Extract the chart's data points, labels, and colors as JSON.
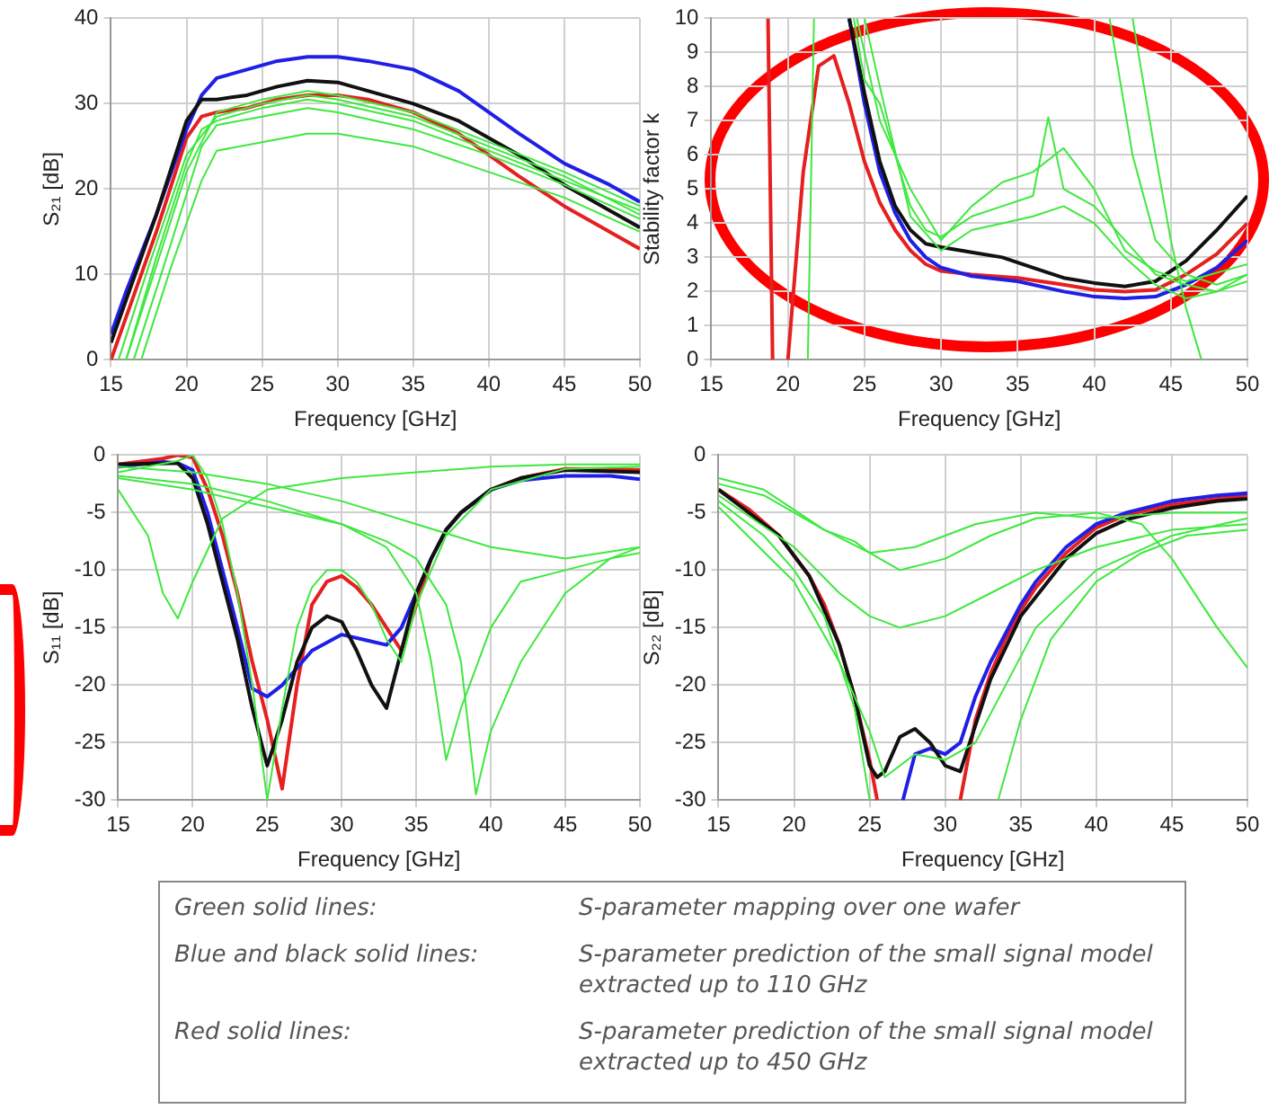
{
  "chart_data": [
    {
      "type": "line",
      "xlabel": "Frequency [GHz]",
      "ylabel": "S₂₁ [dB]",
      "xlim": [
        15,
        50
      ],
      "xticks": [
        15,
        20,
        25,
        30,
        35,
        40,
        45,
        50
      ],
      "ylim": [
        0,
        40
      ],
      "yticks": [
        0,
        10,
        20,
        30,
        40
      ],
      "grid": true,
      "marker": "none",
      "series": [
        {
          "color": "#3ee83e",
          "x": [
            16,
            18,
            20,
            21,
            22,
            25,
            28,
            30,
            35,
            40,
            45,
            50
          ],
          "values": [
            0,
            12,
            23,
            27,
            28,
            29.5,
            30.5,
            30,
            28,
            24.5,
            21,
            17.5
          ]
        },
        {
          "color": "#3ee83e",
          "x": [
            16,
            18,
            20,
            22,
            25,
            28,
            30,
            35,
            40,
            45,
            50
          ],
          "values": [
            0,
            11,
            22,
            29,
            30.5,
            31.5,
            31,
            29,
            25.5,
            22,
            18
          ]
        },
        {
          "color": "#3ee83e",
          "x": [
            16.5,
            18.5,
            21,
            22,
            25,
            28,
            30,
            35,
            40,
            45,
            50
          ],
          "values": [
            0,
            11,
            25,
            27.5,
            28.5,
            29.5,
            29,
            27,
            24,
            20.5,
            16.5
          ]
        },
        {
          "color": "#3ee83e",
          "x": [
            17,
            19,
            21,
            22,
            25,
            28,
            30,
            35,
            40,
            45,
            50
          ],
          "values": [
            0,
            11,
            21,
            24.5,
            25.5,
            26.5,
            26.5,
            25,
            22,
            19,
            15
          ]
        },
        {
          "color": "#3ee83e",
          "x": [
            15.5,
            17.5,
            20,
            22,
            25,
            28,
            30,
            35,
            40,
            45,
            50
          ],
          "values": [
            0,
            11,
            24,
            28.5,
            30,
            31,
            30.5,
            28.5,
            25,
            21.5,
            17
          ]
        },
        {
          "color": "#111111",
          "x": [
            15,
            16,
            18,
            20,
            21,
            22,
            24,
            26,
            28,
            30,
            32,
            35,
            38,
            40,
            42,
            45,
            48,
            50
          ],
          "values": [
            2,
            7,
            17,
            28,
            30.5,
            30.5,
            31,
            32,
            32.7,
            32.5,
            31.5,
            30,
            28,
            26,
            24,
            20.5,
            17.5,
            15.5
          ]
        },
        {
          "color": "#1f1fe6",
          "x": [
            15,
            16,
            18,
            20,
            21,
            22,
            24,
            26,
            28,
            30,
            32,
            35,
            38,
            40,
            42,
            45,
            48,
            50
          ],
          "values": [
            3,
            8,
            17,
            27,
            31,
            33,
            34,
            35,
            35.5,
            35.5,
            35,
            34,
            31.5,
            29,
            26.5,
            23,
            20.5,
            18.5
          ]
        },
        {
          "color": "#e61f1f",
          "x": [
            15,
            16,
            18,
            20,
            21,
            22,
            24,
            26,
            28,
            30,
            32,
            35,
            38,
            40,
            42,
            45,
            48,
            50
          ],
          "values": [
            0,
            5,
            15,
            26,
            28.5,
            29,
            29.5,
            30.5,
            31,
            31,
            30.5,
            29,
            26.5,
            24,
            21.5,
            18,
            15,
            13
          ]
        }
      ]
    },
    {
      "type": "line",
      "xlabel": "Frequency [GHz]",
      "ylabel": "Stability factor k",
      "xlim": [
        15,
        50
      ],
      "xticks": [
        15,
        20,
        25,
        30,
        35,
        40,
        45,
        50
      ],
      "ylim": [
        0,
        10
      ],
      "yticks": [
        0,
        1,
        2,
        3,
        4,
        5,
        6,
        7,
        8,
        9,
        10
      ],
      "grid": true,
      "marker": "none",
      "series": [
        {
          "color": "#3ee83e",
          "x": [
            21.3,
            21.7,
            22,
            24.3,
            25,
            26,
            27,
            28,
            29,
            30,
            32,
            34,
            36,
            37,
            38,
            40,
            42,
            44,
            46,
            48,
            50
          ],
          "values": [
            0,
            10,
            null,
            10,
            8.2,
            7.5,
            6,
            4.5,
            3.8,
            3.6,
            4.2,
            4.5,
            4.8,
            7.1,
            5,
            4.5,
            3.5,
            2.5,
            2.2,
            2,
            2.3
          ]
        },
        {
          "color": "#3ee83e",
          "x": [
            24.5,
            26,
            28,
            30,
            32,
            34,
            36,
            38,
            40,
            42,
            44,
            46,
            50
          ],
          "values": [
            10,
            7,
            5,
            3.5,
            4.5,
            5.2,
            5.5,
            6.2,
            5,
            3.2,
            2.6,
            2.3,
            2.8
          ]
        },
        {
          "color": "#3ee83e",
          "x": [
            25,
            26,
            28,
            30,
            32,
            34,
            36,
            38,
            40,
            42,
            44,
            46,
            48,
            50
          ],
          "values": [
            10,
            8,
            4.2,
            3.2,
            3.8,
            4,
            4.2,
            4.5,
            4,
            3,
            2.2,
            1.8,
            2,
            2.5
          ]
        },
        {
          "color": "#3ee83e",
          "x": [
            41,
            42.5,
            44,
            46,
            48,
            50
          ],
          "values": [
            10,
            6,
            3.5,
            2.5,
            2.2,
            2.5
          ]
        },
        {
          "color": "#3ee83e",
          "x": [
            42.5,
            44,
            45,
            46,
            47
          ],
          "values": [
            10,
            6,
            3.5,
            1.5,
            0
          ]
        },
        {
          "color": "#111111",
          "x": [
            24,
            25,
            26,
            27,
            28,
            29,
            30,
            32,
            34,
            36,
            38,
            40,
            42,
            44,
            46,
            48,
            50
          ],
          "values": [
            10,
            7.8,
            5.8,
            4.5,
            3.8,
            3.4,
            3.3,
            3.15,
            3,
            2.7,
            2.4,
            2.25,
            2.15,
            2.3,
            2.9,
            3.8,
            4.8
          ]
        },
        {
          "color": "#1f1fe6",
          "x": [
            24,
            25,
            26,
            27,
            28,
            29,
            30,
            32,
            35,
            38,
            40,
            42,
            44,
            46,
            48,
            50
          ],
          "values": [
            10,
            7.5,
            5.5,
            4.3,
            3.5,
            3,
            2.7,
            2.45,
            2.3,
            2,
            1.85,
            1.8,
            1.85,
            2.2,
            2.7,
            3.5
          ]
        },
        {
          "color": "#e61f1f",
          "x": [
            18.7,
            19,
            19.5,
            20,
            21,
            22,
            23,
            24,
            25,
            26,
            27,
            28,
            29,
            30,
            32,
            35,
            38,
            40,
            42,
            44,
            46,
            48,
            50
          ],
          "values": [
            10,
            0,
            null,
            0,
            5.5,
            8.6,
            8.9,
            7.5,
            5.8,
            4.6,
            3.8,
            3.2,
            2.8,
            2.6,
            2.5,
            2.4,
            2.2,
            2.05,
            2,
            2.05,
            2.5,
            3.1,
            4
          ]
        }
      ]
    },
    {
      "type": "line",
      "xlabel": "Frequency [GHz]",
      "ylabel": "S₁₁ [dB]",
      "xlim": [
        15,
        50
      ],
      "xticks": [
        15,
        20,
        25,
        30,
        35,
        40,
        45,
        50
      ],
      "ylim": [
        -30,
        0
      ],
      "yticks": [
        0,
        -5,
        -10,
        -15,
        -20,
        -25,
        -30
      ],
      "grid": true,
      "marker": "none",
      "series": [
        {
          "color": "#3ee83e",
          "x": [
            15,
            19,
            20,
            21,
            22,
            23,
            24,
            25,
            26,
            27,
            28,
            29,
            30,
            31,
            32,
            33,
            34,
            35,
            37,
            40,
            45,
            50
          ],
          "values": [
            -1.5,
            -0.5,
            0,
            -2,
            -6,
            -12,
            -20,
            -30,
            -22,
            -15,
            -11.5,
            -10,
            -10,
            -11,
            -13,
            -16,
            -18,
            -13,
            -7,
            -3,
            -1.2,
            -1
          ]
        },
        {
          "color": "#3ee83e",
          "x": [
            15,
            20,
            25,
            30,
            33,
            35,
            37,
            38,
            39,
            40,
            42,
            45,
            48,
            50
          ],
          "values": [
            -1.8,
            -2.5,
            -4,
            -6,
            -7.5,
            -9,
            -13,
            -18,
            -29.5,
            -24,
            -18,
            -12,
            -9,
            -8
          ]
        },
        {
          "color": "#3ee83e",
          "x": [
            15,
            17,
            18,
            19,
            20,
            22,
            25,
            30,
            35,
            40,
            45,
            50
          ],
          "values": [
            -3,
            -7,
            -12,
            -14.2,
            -11,
            -5.5,
            -3,
            -2,
            -1.5,
            -1,
            -0.8,
            -0.8
          ]
        },
        {
          "color": "#3ee83e",
          "x": [
            15,
            20,
            25,
            30,
            33,
            35,
            36,
            37,
            38,
            40,
            42,
            45,
            48,
            50
          ],
          "values": [
            -2,
            -3,
            -4.5,
            -6,
            -8,
            -12,
            -18,
            -26.5,
            -22,
            -15,
            -11,
            -10,
            -9,
            -8.5
          ]
        },
        {
          "color": "#3ee83e",
          "x": [
            15,
            20,
            25,
            30,
            35,
            40,
            45,
            50
          ],
          "values": [
            -1,
            -1.5,
            -2.5,
            -4,
            -6,
            -8,
            -9,
            -8
          ]
        },
        {
          "color": "#111111",
          "x": [
            15,
            19,
            20,
            21,
            22,
            23,
            24,
            25,
            26,
            27,
            28,
            29,
            30,
            31,
            32,
            33,
            34,
            35,
            36,
            37,
            38,
            40,
            42,
            45,
            50
          ],
          "values": [
            -0.8,
            -0.7,
            -2,
            -6,
            -11,
            -16,
            -22,
            -27,
            -23,
            -18,
            -15,
            -14,
            -14.5,
            -17,
            -20,
            -22,
            -17,
            -12,
            -9,
            -6.5,
            -5,
            -3,
            -2,
            -1.3,
            -1.5
          ]
        },
        {
          "color": "#1f1fe6",
          "x": [
            15,
            18,
            19,
            20,
            21,
            22,
            23,
            24,
            25,
            26,
            27,
            28,
            30,
            32,
            33,
            34,
            35,
            36,
            37,
            38,
            40,
            42,
            45,
            48,
            50
          ],
          "values": [
            -1,
            -0.6,
            -0.7,
            -1.3,
            -5,
            -10,
            -15,
            -20.3,
            -21,
            -20,
            -18.5,
            -17,
            -15.6,
            -16.2,
            -16.5,
            -15,
            -12,
            -9,
            -6.5,
            -5,
            -3,
            -2.2,
            -1.8,
            -1.8,
            -2.1
          ]
        },
        {
          "color": "#e61f1f",
          "x": [
            15,
            18,
            19,
            20,
            21,
            22,
            23,
            24,
            25,
            26,
            27,
            28,
            29,
            30,
            31,
            32,
            33,
            34,
            35,
            36,
            37,
            38,
            40,
            42,
            45,
            48,
            50
          ],
          "values": [
            -0.8,
            -0.3,
            0,
            -0.2,
            -3,
            -7,
            -12,
            -18,
            -23,
            -29,
            -20,
            -13,
            -11,
            -10.5,
            -11.5,
            -13,
            -15,
            -17,
            -13,
            -9,
            -6.5,
            -5,
            -3,
            -2,
            -1.2,
            -1.2,
            -1.3
          ]
        }
      ]
    },
    {
      "type": "line",
      "xlabel": "Frequency [GHz]",
      "ylabel": "S₂₂ [dB]",
      "xlim": [
        15,
        50
      ],
      "xticks": [
        15,
        20,
        25,
        30,
        35,
        40,
        45,
        50
      ],
      "ylim": [
        -30,
        0
      ],
      "yticks": [
        0,
        -5,
        -10,
        -15,
        -20,
        -25,
        -30
      ],
      "grid": true,
      "marker": "none",
      "series": [
        {
          "color": "#3ee83e",
          "x": [
            15,
            18,
            20,
            22,
            24,
            25,
            27,
            30,
            33,
            36,
            40,
            43,
            45,
            48,
            50
          ],
          "values": [
            -2.5,
            -3.5,
            -5,
            -6.5,
            -7.5,
            -8.5,
            -10,
            -9,
            -7,
            -5.5,
            -5,
            -6,
            -9,
            -15,
            -18.5
          ]
        },
        {
          "color": "#3ee83e",
          "x": [
            15,
            18,
            20,
            22,
            24,
            25,
            29,
            33.5,
            35,
            37,
            40,
            43,
            46,
            50
          ],
          "values": [
            -4,
            -7,
            -10,
            -14,
            -22,
            -30,
            null,
            -30,
            -23,
            -16,
            -11,
            -8.5,
            -7,
            -6.5
          ]
        },
        {
          "color": "#3ee83e",
          "x": [
            15,
            20,
            23,
            25,
            27,
            30,
            33,
            36,
            40,
            45,
            50
          ],
          "values": [
            -3.5,
            -8,
            -12,
            -14,
            -15,
            -14,
            -12,
            -10,
            -8,
            -6.5,
            -6
          ]
        },
        {
          "color": "#3ee83e",
          "x": [
            15,
            20,
            23,
            25,
            26,
            28,
            30,
            32,
            34,
            36,
            40,
            45,
            50
          ],
          "values": [
            -4.5,
            -11,
            -18,
            -24,
            -28,
            -26,
            -26.5,
            -25,
            -20,
            -15,
            -10,
            -7,
            -5.5
          ]
        },
        {
          "color": "#3ee83e",
          "x": [
            15,
            18,
            22,
            25,
            28,
            32,
            36,
            40,
            45,
            50
          ],
          "values": [
            -2,
            -3,
            -6.5,
            -8.5,
            -8,
            -6,
            -5,
            -5.5,
            -5,
            -5
          ]
        },
        {
          "color": "#111111",
          "x": [
            15,
            19,
            21,
            23,
            24,
            25,
            25.5,
            26,
            27,
            28,
            29,
            30,
            31,
            33,
            35,
            38,
            40,
            42,
            45,
            48,
            50
          ],
          "values": [
            -3,
            -7,
            -10.5,
            -16.5,
            -21,
            -27,
            -28,
            -27.5,
            -24.5,
            -23.8,
            -25,
            -27,
            -27.5,
            -19.5,
            -14,
            -9,
            -6.8,
            -5.6,
            -4.6,
            -4,
            -3.8
          ]
        },
        {
          "color": "#1f1fe6",
          "x": [
            27.2,
            28,
            29,
            30,
            31,
            32,
            33,
            34,
            35,
            36,
            38,
            40,
            42,
            45,
            48,
            50
          ],
          "values": [
            -30,
            -26,
            -25.5,
            -26,
            -25,
            -21,
            -18,
            -15.5,
            -13,
            -11,
            -8,
            -6,
            -5,
            -4,
            -3.5,
            -3.3
          ]
        },
        {
          "color": "#e61f1f",
          "x": [
            15,
            17,
            19,
            21,
            22,
            23,
            24,
            25,
            25.5,
            28,
            31,
            32,
            33,
            34,
            35,
            36,
            38,
            40,
            42,
            45,
            48,
            50
          ],
          "values": [
            -3,
            -4.7,
            -7,
            -10.5,
            -13,
            -16.5,
            -21,
            -26.5,
            -30,
            null,
            -30,
            -23,
            -19,
            -16,
            -13.5,
            -11.5,
            -8.5,
            -6.3,
            -5.2,
            -4.3,
            -3.8,
            -3.5
          ]
        }
      ]
    },
    {
      "type": "other",
      "annotations": [
        "Green solid lines:",
        "S-parameter mapping over one wafer",
        "Blue and black solid lines:",
        "S-parameter prediction of the small signal model extracted up to 110 GHz",
        "Red solid lines:",
        "S-parameter prediction of the small signal model extracted up to 450 GHz"
      ]
    }
  ]
}
